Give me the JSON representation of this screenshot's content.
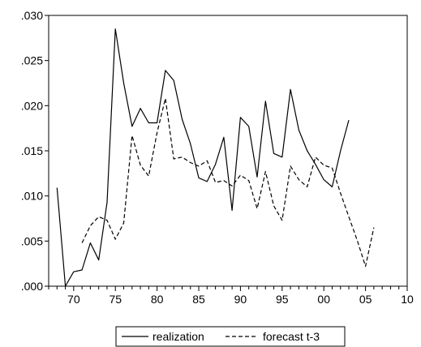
{
  "chart_data": {
    "type": "line",
    "title": "",
    "xlabel": "",
    "ylabel": "",
    "xlim": [
      1967,
      2010
    ],
    "ylim": [
      0.0,
      0.03
    ],
    "x_ticks": [
      1970,
      1975,
      1980,
      1985,
      1990,
      1995,
      2000,
      2005,
      2010
    ],
    "x_tick_labels": [
      "70",
      "75",
      "80",
      "85",
      "90",
      "95",
      "00",
      "05",
      "10"
    ],
    "y_ticks": [
      0.0,
      0.005,
      0.01,
      0.015,
      0.02,
      0.025,
      0.03
    ],
    "y_tick_labels": [
      ".000",
      ".005",
      ".010",
      ".015",
      ".020",
      ".025",
      ".030"
    ],
    "grid": false,
    "legend_position": "bottom-center",
    "series": [
      {
        "name": "realization",
        "style": "solid",
        "color": "#000000",
        "x": [
          1968,
          1969,
          1970,
          1971,
          1972,
          1973,
          1974,
          1975,
          1976,
          1977,
          1978,
          1979,
          1980,
          1981,
          1982,
          1983,
          1984,
          1985,
          1986,
          1987,
          1988,
          1989,
          1990,
          1991,
          1992,
          1993,
          1994,
          1995,
          1996,
          1997,
          1998,
          1999,
          2000,
          2001,
          2002,
          2003
        ],
        "values": [
          0.0109,
          0.0,
          0.0016,
          0.0018,
          0.0048,
          0.0029,
          0.0093,
          0.0285,
          0.0225,
          0.0177,
          0.0197,
          0.0181,
          0.0181,
          0.0239,
          0.0228,
          0.0185,
          0.0158,
          0.012,
          0.0116,
          0.0135,
          0.0165,
          0.0084,
          0.0187,
          0.0177,
          0.0121,
          0.0205,
          0.0147,
          0.0143,
          0.0218,
          0.0173,
          0.015,
          0.0135,
          0.0118,
          0.011,
          0.015,
          0.0184
        ]
      },
      {
        "name": "forecast t-3",
        "style": "dashed",
        "color": "#000000",
        "x": [
          1971,
          1972,
          1973,
          1974,
          1975,
          1976,
          1977,
          1978,
          1979,
          1980,
          1981,
          1982,
          1983,
          1984,
          1985,
          1986,
          1987,
          1988,
          1989,
          1990,
          1991,
          1992,
          1993,
          1994,
          1995,
          1996,
          1997,
          1998,
          1999,
          2000,
          2001,
          2002,
          2003,
          2004,
          2005,
          2006
        ],
        "values": [
          0.0048,
          0.0067,
          0.0077,
          0.0073,
          0.0052,
          0.007,
          0.0167,
          0.0134,
          0.0122,
          0.017,
          0.0208,
          0.0141,
          0.0143,
          0.0137,
          0.0133,
          0.0139,
          0.0115,
          0.0117,
          0.0111,
          0.0123,
          0.0117,
          0.0086,
          0.0127,
          0.0089,
          0.0073,
          0.0133,
          0.0118,
          0.011,
          0.0143,
          0.0134,
          0.0131,
          0.0103,
          0.0077,
          0.0051,
          0.0022,
          0.0065
        ]
      }
    ]
  }
}
